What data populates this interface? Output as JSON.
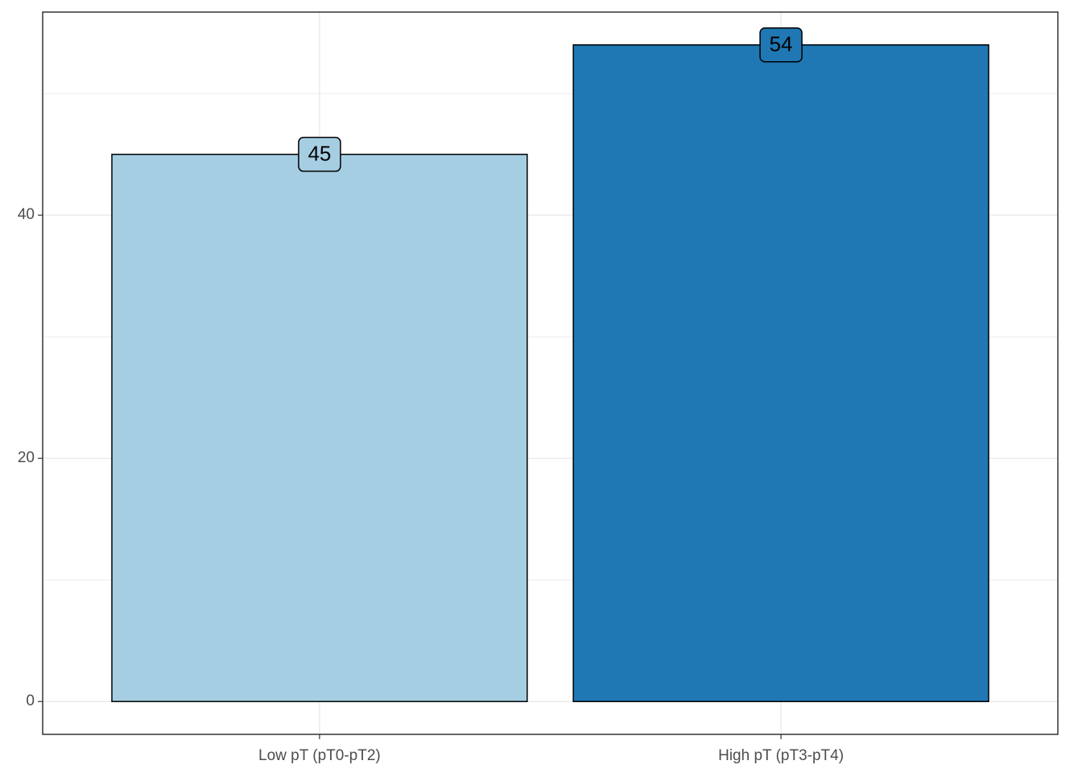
{
  "chart_data": {
    "type": "bar",
    "categories": [
      "Low pT (pT0-pT2)",
      "High pT (pT3-pT4)"
    ],
    "values": [
      45,
      54
    ],
    "colors": [
      "#a6cee3",
      "#1f78b4"
    ],
    "ylim": [
      -2.7,
      56.7
    ],
    "yticks": [
      0,
      20,
      40
    ],
    "y_minor_ticks": [
      10,
      30,
      50
    ],
    "grid": true
  }
}
